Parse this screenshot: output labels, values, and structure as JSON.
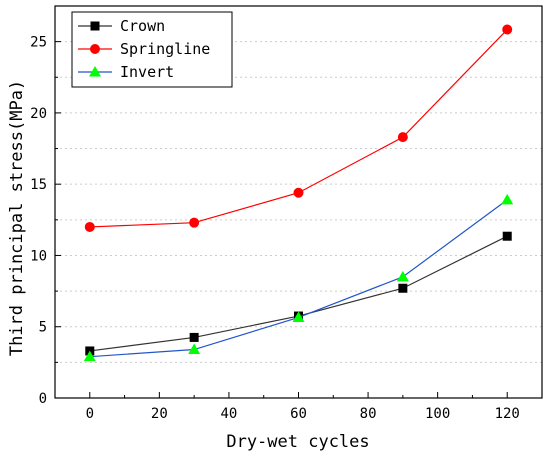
{
  "chart_data": {
    "type": "line",
    "title": "",
    "xlabel": "Dry-wet cycles",
    "ylabel": "Third principal stress(MPa)",
    "x": [
      0,
      30,
      60,
      90,
      120
    ],
    "xlim": [
      -10,
      130
    ],
    "ylim": [
      0,
      27.5
    ],
    "xticks": [
      0,
      20,
      40,
      60,
      80,
      100,
      120
    ],
    "yticks": [
      0,
      5,
      10,
      15,
      20,
      25
    ],
    "grid": "horizontal dotted",
    "legend_position": "top-left",
    "series": [
      {
        "name": "Crown",
        "values": [
          3.3,
          4.25,
          5.75,
          7.7,
          11.35
        ],
        "color": "#000000",
        "line_color": "#333333",
        "marker": "square"
      },
      {
        "name": "Springline",
        "values": [
          12.0,
          12.3,
          14.4,
          18.3,
          25.85
        ],
        "color": "#ff0000",
        "line_color": "#ff0000",
        "marker": "circle"
      },
      {
        "name": "Invert",
        "values": [
          2.9,
          3.4,
          5.65,
          8.5,
          13.9
        ],
        "color": "#00ff00",
        "line_color": "#2255cc",
        "marker": "triangle"
      }
    ]
  }
}
